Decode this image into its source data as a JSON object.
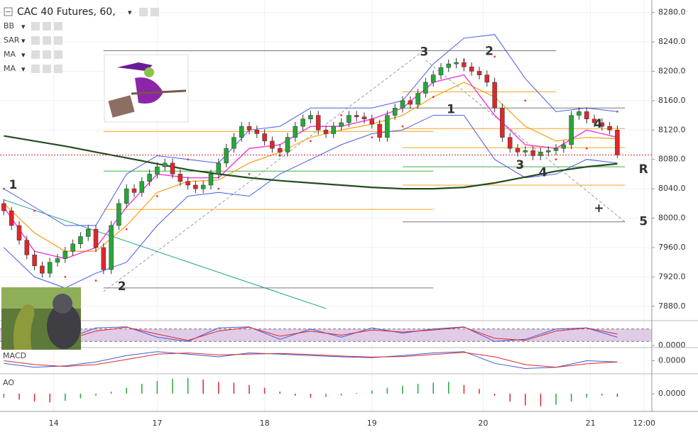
{
  "chart_data": {
    "type": "candlestick",
    "title": "CAC 40 Futures, 60,",
    "indicators": [
      "BB",
      "SAR",
      "MA",
      "MA"
    ],
    "xlim": [
      -0.5,
      84.5
    ],
    "xticks": [
      {
        "value": 6.5,
        "label": "14"
      },
      {
        "value": 20,
        "label": "17"
      },
      {
        "value": 34,
        "label": "18"
      },
      {
        "value": 48,
        "label": "19"
      },
      {
        "value": 62.5,
        "label": "20"
      },
      {
        "value": 76.5,
        "label": "21"
      },
      {
        "value": 83.5,
        "label": "12:00"
      }
    ],
    "ylim": [
      7875,
      8297
    ],
    "yticks": [
      {
        "value": 8280,
        "label": "8280.0"
      },
      {
        "value": 8240,
        "label": "8240.0"
      },
      {
        "value": 8200,
        "label": "8200.0"
      },
      {
        "value": 8160,
        "label": "8160.0"
      },
      {
        "value": 8120,
        "label": "8120.0"
      },
      {
        "value": 8080,
        "label": "8080.0"
      },
      {
        "value": 8040,
        "label": "8040.0"
      },
      {
        "value": 8000,
        "label": "8000.0"
      },
      {
        "value": 7960,
        "label": "7960.0"
      },
      {
        "value": 7920,
        "label": "7920.0"
      },
      {
        "value": 7880,
        "label": "7880.0"
      }
    ],
    "grid": true,
    "up_color": "#26a639",
    "down_color": "#e0262b",
    "candles": [
      [
        8020,
        8026,
        8004,
        8010
      ],
      [
        8010,
        8015,
        7984,
        7990
      ],
      [
        7990,
        7996,
        7964,
        7970
      ],
      [
        7970,
        7976,
        7944,
        7950
      ],
      [
        7950,
        7956,
        7929,
        7935
      ],
      [
        7935,
        7941,
        7919,
        7925
      ],
      [
        7925,
        7946,
        7919,
        7940
      ],
      [
        7940,
        7951,
        7934,
        7945
      ],
      [
        7945,
        7961,
        7939,
        7955
      ],
      [
        7955,
        7971,
        7949,
        7965
      ],
      [
        7965,
        7981,
        7959,
        7975
      ],
      [
        7975,
        7991,
        7969,
        7985
      ],
      [
        7985,
        7991,
        7954,
        7960
      ],
      [
        7960,
        7966,
        7924,
        7930
      ],
      [
        7930,
        7996,
        7924,
        7990
      ],
      [
        7990,
        8026,
        7984,
        8020
      ],
      [
        8020,
        8046,
        8014,
        8040
      ],
      [
        8040,
        8046,
        8029,
        8035
      ],
      [
        8035,
        8056,
        8029,
        8050
      ],
      [
        8050,
        8066,
        8044,
        8060
      ],
      [
        8060,
        8076,
        8054,
        8070
      ],
      [
        8070,
        8081,
        8064,
        8075
      ],
      [
        8075,
        8081,
        8054,
        8060
      ],
      [
        8060,
        8066,
        8044,
        8050
      ],
      [
        8050,
        8056,
        8039,
        8045
      ],
      [
        8045,
        8051,
        8034,
        8040
      ],
      [
        8040,
        8051,
        8034,
        8045
      ],
      [
        8045,
        8066,
        8039,
        8060
      ],
      [
        8060,
        8081,
        8054,
        8075
      ],
      [
        8075,
        8101,
        8069,
        8095
      ],
      [
        8095,
        8116,
        8089,
        8110
      ],
      [
        8110,
        8131,
        8104,
        8125
      ],
      [
        8125,
        8131,
        8114,
        8120
      ],
      [
        8120,
        8126,
        8109,
        8115
      ],
      [
        8115,
        8121,
        8099,
        8105
      ],
      [
        8105,
        8111,
        8089,
        8095
      ],
      [
        8095,
        8101,
        8084,
        8090
      ],
      [
        8090,
        8116,
        8084,
        8110
      ],
      [
        8110,
        8131,
        8104,
        8125
      ],
      [
        8125,
        8141,
        8119,
        8135
      ],
      [
        8135,
        8146,
        8129,
        8140
      ],
      [
        8140,
        8146,
        8114,
        8120
      ],
      [
        8120,
        8126,
        8109,
        8115
      ],
      [
        8115,
        8131,
        8109,
        8125
      ],
      [
        8125,
        8136,
        8119,
        8130
      ],
      [
        8130,
        8146,
        8124,
        8140
      ],
      [
        8140,
        8146,
        8132,
        8138
      ],
      [
        8138,
        8144,
        8129,
        8135
      ],
      [
        8135,
        8141,
        8122,
        8128
      ],
      [
        8128,
        8134,
        8104,
        8110
      ],
      [
        8110,
        8146,
        8104,
        8140
      ],
      [
        8140,
        8156,
        8134,
        8150
      ],
      [
        8150,
        8166,
        8144,
        8160
      ],
      [
        8160,
        8166,
        8149,
        8155
      ],
      [
        8155,
        8176,
        8149,
        8170
      ],
      [
        8170,
        8191,
        8164,
        8185
      ],
      [
        8185,
        8201,
        8179,
        8195
      ],
      [
        8195,
        8211,
        8189,
        8205
      ],
      [
        8205,
        8216,
        8199,
        8210
      ],
      [
        8210,
        8218,
        8204,
        8212
      ],
      [
        8212,
        8218,
        8200,
        8206
      ],
      [
        8206,
        8212,
        8194,
        8200
      ],
      [
        8200,
        8206,
        8189,
        8195
      ],
      [
        8195,
        8201,
        8179,
        8185
      ],
      [
        8185,
        8191,
        8144,
        8150
      ],
      [
        8150,
        8156,
        8104,
        8110
      ],
      [
        8110,
        8116,
        8089,
        8095
      ],
      [
        8095,
        8101,
        8084,
        8090
      ],
      [
        8090,
        8098,
        8084,
        8092
      ],
      [
        8092,
        8098,
        8079,
        8085
      ],
      [
        8085,
        8096,
        8079,
        8090
      ],
      [
        8090,
        8098,
        8084,
        8092
      ],
      [
        8092,
        8101,
        8086,
        8095
      ],
      [
        8095,
        8106,
        8089,
        8100
      ],
      [
        8100,
        8146,
        8094,
        8140
      ],
      [
        8140,
        8151,
        8134,
        8145
      ],
      [
        8145,
        8151,
        8129,
        8135
      ],
      [
        8135,
        8141,
        8124,
        8130
      ],
      [
        8130,
        8136,
        8119,
        8125
      ],
      [
        8125,
        8131,
        8114,
        8120
      ],
      [
        8120,
        8126,
        8082,
        8086
      ]
    ],
    "last_price_color": "#d62828",
    "x": [
      0,
      4,
      8,
      12,
      16,
      20,
      24,
      28,
      32,
      36,
      40,
      44,
      48,
      52,
      56,
      60,
      64,
      68,
      72,
      76,
      80
    ],
    "series": [
      {
        "name": "BB",
        "color": "#4a5ae8",
        "middle_color": "#f5a623",
        "upper": [
          8040,
          8015,
          7990,
          7990,
          8060,
          8085,
          8080,
          8075,
          8120,
          8125,
          8150,
          8150,
          8150,
          8160,
          8210,
          8245,
          8250,
          8190,
          8145,
          8150,
          8145
        ],
        "middle": [
          8020,
          7980,
          7955,
          7955,
          7990,
          8035,
          8050,
          8052,
          8075,
          8090,
          8110,
          8120,
          8128,
          8140,
          8165,
          8185,
          8165,
          8125,
          8105,
          8110,
          8108
        ],
        "lower": [
          7960,
          7920,
          7905,
          7925,
          7940,
          7990,
          8030,
          8035,
          8030,
          8060,
          8080,
          8100,
          8115,
          8120,
          8140,
          8140,
          8080,
          8055,
          8060,
          8080,
          8075
        ]
      },
      {
        "name": "SAR",
        "color": "#e33b3b",
        "style": "dots",
        "values": [
          8040,
          8010,
          7920,
          7915,
          7985,
          8030,
          8080,
          8040,
          8060,
          8085,
          8105,
          8140,
          8110,
          8125,
          8165,
          8215,
          8220,
          8160,
          8080,
          8095,
          8145
        ]
      },
      {
        "name": "MA",
        "color": "#ee44dd",
        "values": [
          8015,
          7955,
          7945,
          7960,
          8015,
          8060,
          8055,
          8055,
          8095,
          8100,
          8125,
          8125,
          8135,
          8150,
          8185,
          8195,
          8140,
          8100,
          8095,
          8120,
          8110
        ]
      },
      {
        "name": "MA",
        "color": "#234d20",
        "values": [
          8112,
          8105,
          8098,
          8090,
          8082,
          8074,
          8066,
          8060,
          8055,
          8051,
          8048,
          8045,
          8042,
          8040,
          8040,
          8042,
          8048,
          8056,
          8064,
          8070,
          8074
        ]
      }
    ],
    "levels": [
      {
        "value": 8228,
        "from": 13,
        "to": 72,
        "color": "#777"
      },
      {
        "value": 8118,
        "from": 13,
        "to": 56,
        "color": "#f5a623"
      },
      {
        "value": 8064,
        "from": 13,
        "to": 56,
        "color": "#3cb043"
      },
      {
        "value": 8012,
        "from": 13,
        "to": 56,
        "color": "#f5a623"
      },
      {
        "value": 7905,
        "from": 13,
        "to": 56,
        "color": "#777"
      },
      {
        "value": 8172,
        "from": 52,
        "to": 72,
        "color": "#f5a623"
      },
      {
        "value": 8150,
        "from": 52,
        "to": 81,
        "color": "#777"
      },
      {
        "value": 8122,
        "from": 52,
        "to": 81,
        "color": "#f5a623"
      },
      {
        "value": 8096,
        "from": 52,
        "to": 81,
        "color": "#f5a623"
      },
      {
        "value": 8070,
        "from": 52,
        "to": 81,
        "color": "#3cb043"
      },
      {
        "value": 8045,
        "from": 52,
        "to": 81,
        "color": "#f5a623"
      },
      {
        "value": 7995,
        "from": 52,
        "to": 81,
        "color": "#777"
      }
    ],
    "trendlines": [
      {
        "points": [
          [
            13,
            7900
          ],
          [
            55,
            8230
          ]
        ],
        "color": "#999",
        "dashed": true
      },
      {
        "points": [
          [
            55,
            8215
          ],
          [
            81,
            7995
          ]
        ],
        "color": "#999",
        "dashed": true
      },
      {
        "points": [
          [
            0,
            8025
          ],
          [
            42,
            7877
          ]
        ],
        "color": "#1f9e89",
        "dashed": false
      }
    ],
    "annotations": [
      {
        "text": "1",
        "x": 1.2,
        "y": 8045,
        "color": "#e0262b"
      },
      {
        "text": "2",
        "x": 15.4,
        "y": 7907,
        "color": "#e0262b"
      },
      {
        "text": "3",
        "x": 54.8,
        "y": 8226,
        "color": "#e0262b"
      },
      {
        "text": "4",
        "x": 70.3,
        "y": 8062,
        "color": "#e0262b"
      },
      {
        "text": "+",
        "x": 77.6,
        "y": 8013,
        "color": "#e0262b"
      },
      {
        "text": "1",
        "x": 58.3,
        "y": 8148,
        "color": "#2b3990"
      },
      {
        "text": "2",
        "x": 63.3,
        "y": 8227,
        "color": "#2b3990"
      },
      {
        "text": "3",
        "x": 67.3,
        "y": 8072,
        "color": "#2b3990"
      },
      {
        "text": "4",
        "x": 77.5,
        "y": 8128,
        "color": "#2b3990"
      },
      {
        "text": "5",
        "x": 83.4,
        "y": 7995,
        "color": "#2b3990"
      },
      {
        "text": "R",
        "x": 83.4,
        "y": 8066,
        "color": "#2b3990"
      }
    ],
    "panes": [
      {
        "type": "line",
        "ylim": [
          -10,
          110
        ],
        "band": [
          20,
          80
        ],
        "ticks": [
          {
            "value": 0,
            "label": "0.0000"
          }
        ],
        "series": [
          {
            "color": "#3b5bdb",
            "values": [
              80,
              20,
              30,
              85,
              90,
              40,
              20,
              85,
              90,
              30,
              80,
              40,
              85,
              60,
              80,
              90,
              20,
              30,
              80,
              85,
              40
            ]
          },
          {
            "color": "#e0262b",
            "values": [
              70,
              35,
              25,
              70,
              88,
              55,
              25,
              70,
              88,
              45,
              70,
              50,
              75,
              65,
              75,
              88,
              35,
              25,
              70,
              85,
              55
            ]
          }
        ]
      },
      {
        "type": "line",
        "name": "MACD",
        "ylim": [
          -45,
          45
        ],
        "ticks": [
          {
            "value": 0,
            "label": "0.0000"
          }
        ],
        "series": [
          {
            "color": "#3b5bdb",
            "values": [
              -10,
              -25,
              -20,
              -5,
              20,
              35,
              25,
              15,
              30,
              25,
              20,
              15,
              12,
              20,
              30,
              35,
              -10,
              -30,
              -25,
              0,
              -5
            ]
          },
          {
            "color": "#e0262b",
            "values": [
              0,
              -15,
              -22,
              -15,
              5,
              25,
              30,
              22,
              25,
              28,
              24,
              18,
              14,
              16,
              24,
              32,
              15,
              -15,
              -25,
              -12,
              -5
            ]
          }
        ]
      },
      {
        "type": "histogram",
        "name": "AO",
        "ylim": [
          -45,
          45
        ],
        "ticks": [
          {
            "value": 0,
            "label": "0.0000"
          }
        ],
        "x": [
          0,
          2,
          4,
          6,
          8,
          10,
          12,
          14,
          16,
          18,
          20,
          22,
          24,
          26,
          28,
          30,
          32,
          34,
          36,
          38,
          40,
          42,
          44,
          46,
          48,
          50,
          52,
          54,
          56,
          58,
          60,
          62,
          64,
          66,
          68,
          70,
          72,
          74,
          76,
          78,
          80
        ],
        "values": [
          -10,
          -15,
          -20,
          -22,
          -18,
          -12,
          -5,
          5,
          15,
          25,
          32,
          38,
          40,
          36,
          30,
          28,
          22,
          15,
          5,
          -5,
          -10,
          -8,
          -5,
          2,
          8,
          15,
          20,
          25,
          28,
          30,
          22,
          12,
          -5,
          -20,
          -30,
          -32,
          -28,
          -20,
          -10,
          -5,
          -8
        ]
      }
    ]
  }
}
